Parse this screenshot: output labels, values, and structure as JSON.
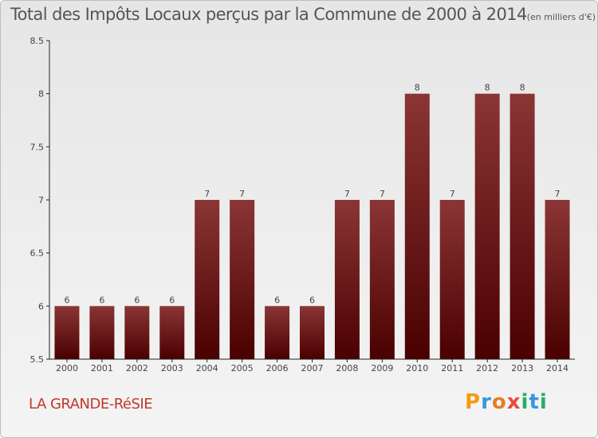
{
  "header": {
    "title": "Total des Impôts Locaux perçus par la Commune de 2000 à 2014",
    "unit": "(en milliers d'€)"
  },
  "footer": {
    "commune": "LA GRANDE-RéSIE",
    "logo_letters": [
      "P",
      "r",
      "o",
      "x",
      "i",
      "t",
      "i"
    ],
    "logo_colors": [
      "#f39c12",
      "#3498db",
      "#e67e22",
      "#e74c3c",
      "#27ae60",
      "#3498db",
      "#27ae60"
    ]
  },
  "chart_data": {
    "type": "bar",
    "title": "Total des Impôts Locaux perçus par la Commune de 2000 à 2014",
    "xlabel": "",
    "ylabel": "",
    "categories": [
      "2000",
      "2001",
      "2002",
      "2003",
      "2004",
      "2005",
      "2006",
      "2007",
      "2008",
      "2009",
      "2010",
      "2011",
      "2012",
      "2013",
      "2014"
    ],
    "values": [
      6,
      6,
      6,
      6,
      7,
      7,
      6,
      6,
      7,
      7,
      8,
      7,
      8,
      8,
      7
    ],
    "data_labels": [
      "6",
      "6",
      "6",
      "6",
      "7",
      "7",
      "6",
      "6",
      "7",
      "7",
      "8",
      "7",
      "8",
      "8",
      "7"
    ],
    "ylim": [
      5.5,
      8.5
    ],
    "yticks": [
      5.5,
      6,
      6.5,
      7,
      7.5,
      8,
      8.5
    ],
    "ytick_labels": [
      "5.5",
      "6",
      "6.5",
      "7",
      "7.5",
      "8",
      "8.5"
    ],
    "grid": false,
    "bar_color_top": "#8b3535",
    "bar_color_bottom": "#4a0000"
  }
}
